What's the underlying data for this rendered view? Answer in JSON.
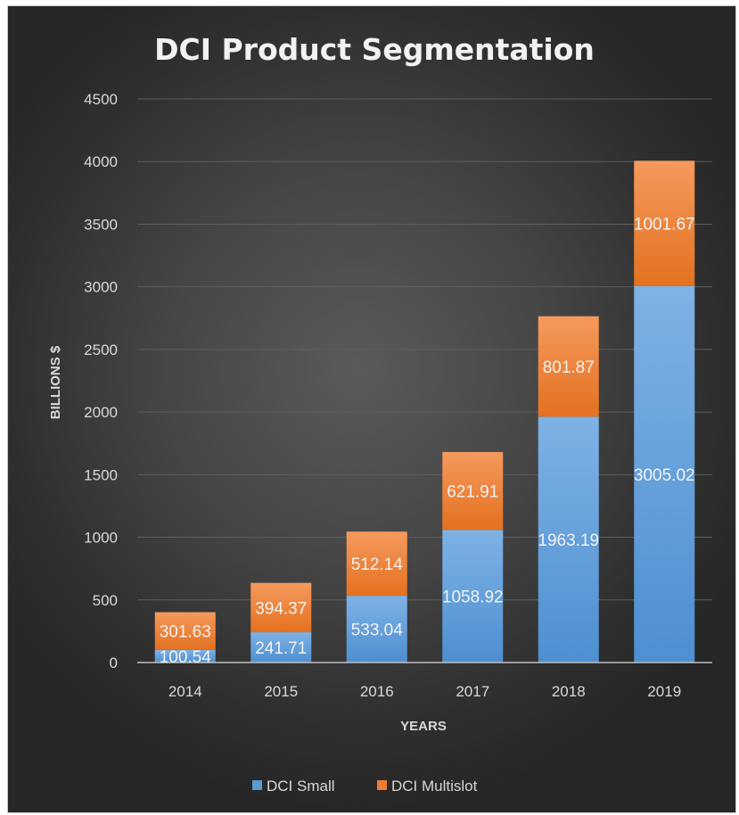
{
  "chart_data": {
    "type": "bar",
    "stacked": true,
    "title": "DCI Product Segmentation",
    "xlabel": "YEARS",
    "ylabel": "BILLIONS $",
    "categories": [
      "2014",
      "2015",
      "2016",
      "2017",
      "2018",
      "2019"
    ],
    "series": [
      {
        "name": "DCI Small",
        "values": [
          100.54,
          241.71,
          533.04,
          1058.92,
          1963.19,
          3005.02
        ],
        "color": "#5b9bd5"
      },
      {
        "name": "DCI Multislot",
        "values": [
          301.63,
          394.37,
          512.14,
          621.91,
          801.87,
          1001.67
        ],
        "color": "#ed7d31"
      }
    ],
    "ylim": [
      0,
      4500
    ],
    "yticks": [
      0,
      500,
      1000,
      1500,
      2000,
      2500,
      3000,
      3500,
      4000,
      4500
    ],
    "grid": true,
    "legend": "bottom"
  }
}
